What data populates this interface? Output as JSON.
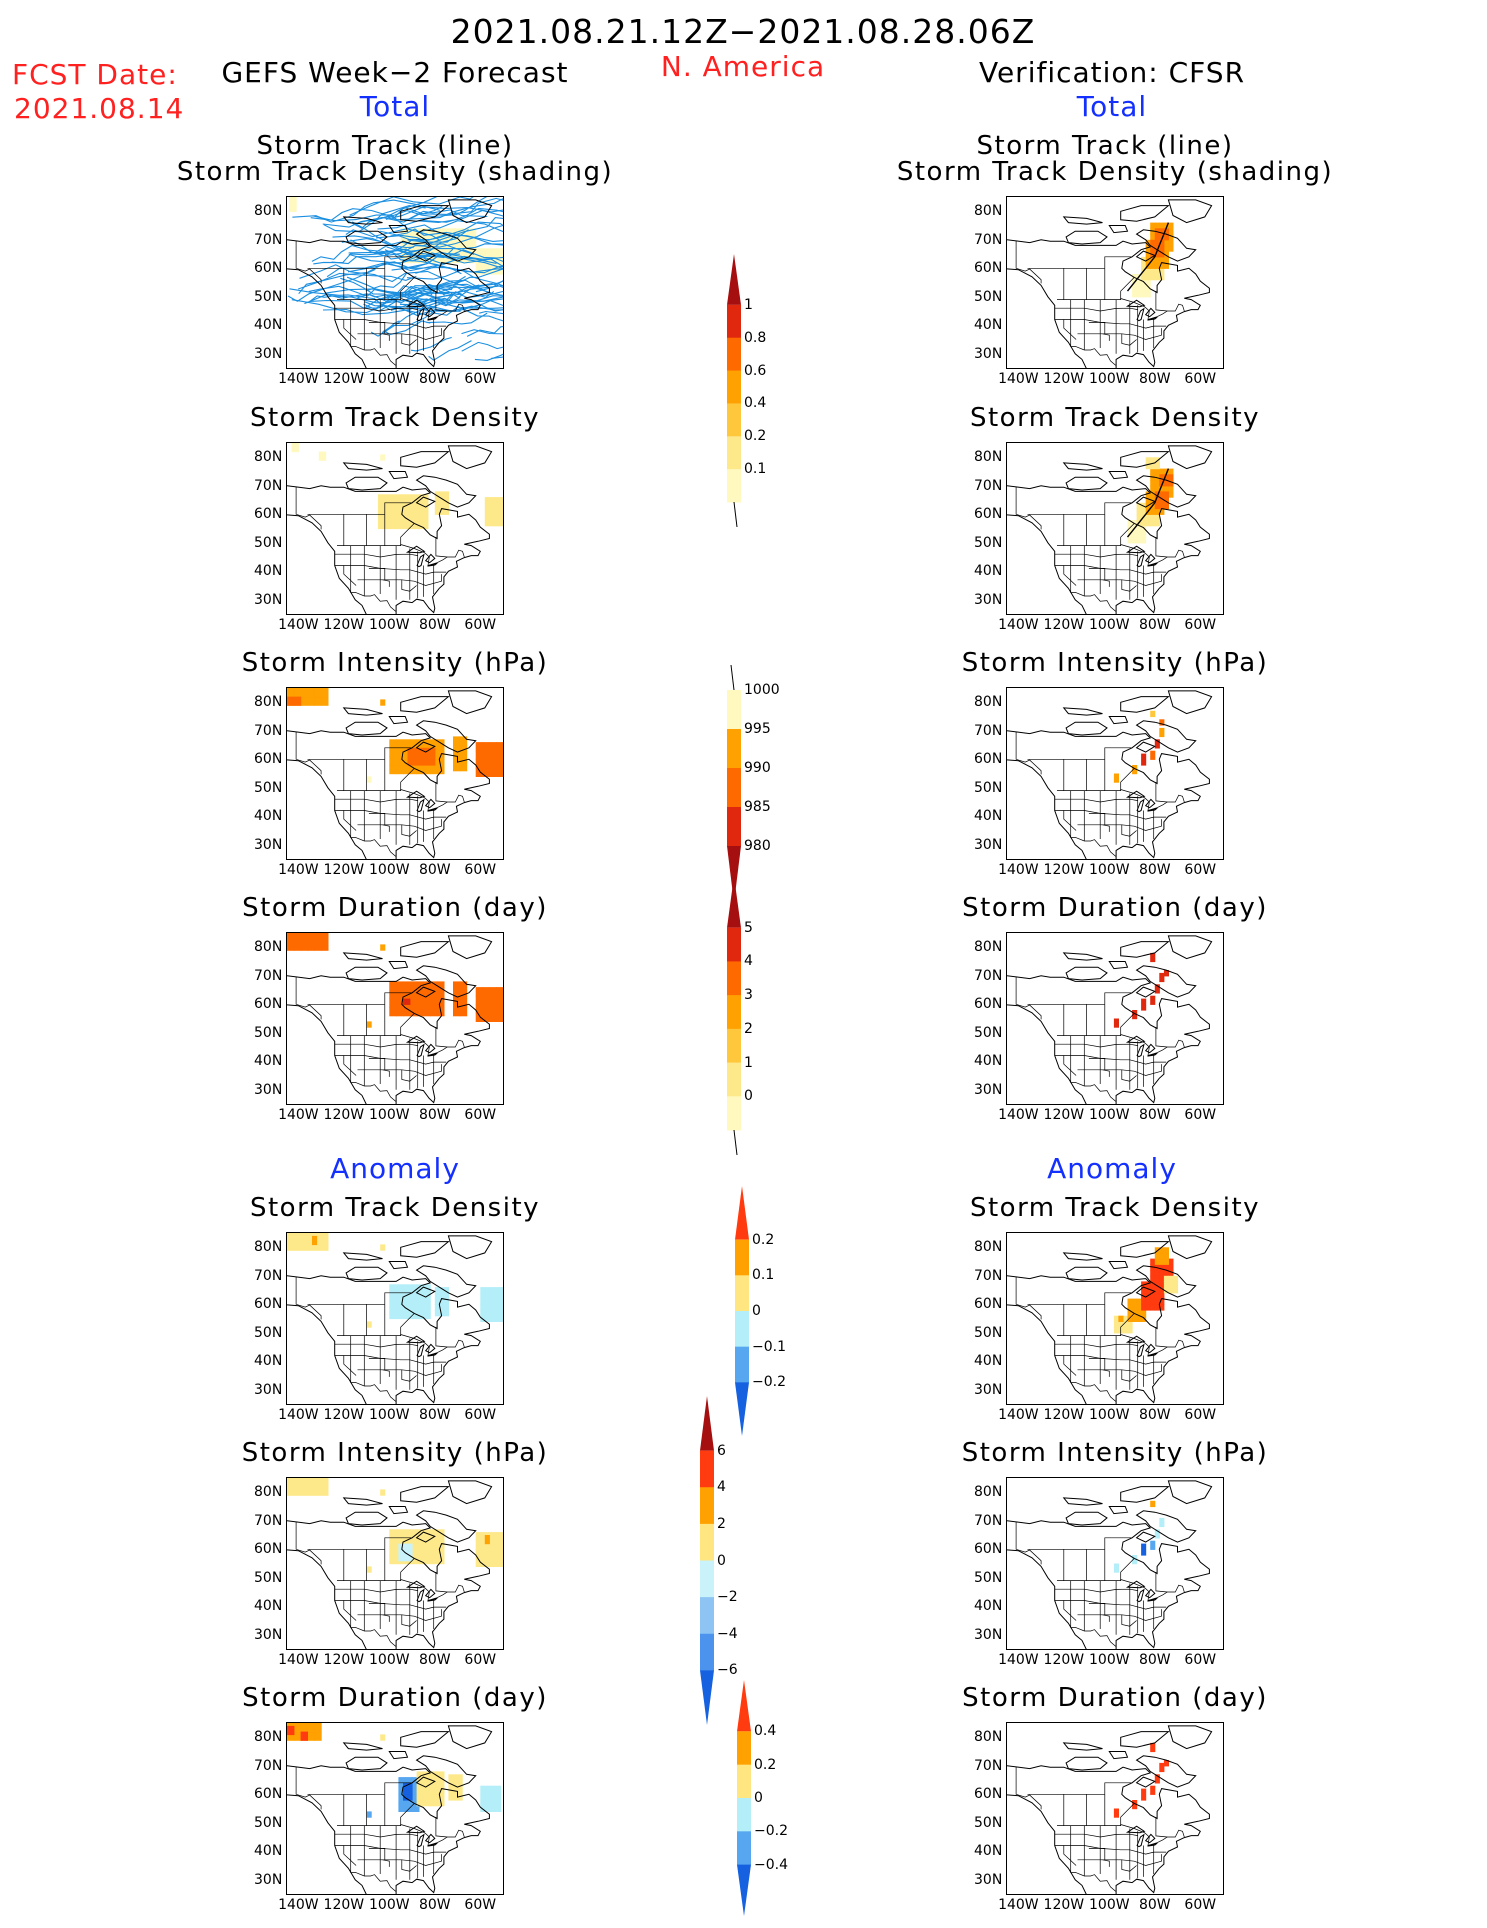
{
  "header": {
    "period": "2021.08.21.12Z−2021.08.28.06Z",
    "fcst_label": "FCST Date:",
    "fcst_date": "2021.08.14",
    "forecast_title": "GEFS Week−2 Forecast",
    "region": "N. America",
    "verification_title": "Verification: CFSR",
    "total_left": "Total",
    "total_right": "Total",
    "anomaly_left": "Anomaly",
    "anomaly_right": "Anomaly"
  },
  "axes": {
    "lat_ticks": [
      "80N",
      "70N",
      "60N",
      "50N",
      "40N",
      "30N"
    ],
    "lon_ticks": [
      "140W",
      "120W",
      "100W",
      "80W",
      "60W"
    ]
  },
  "panels": {
    "track_title_1": "Storm Track (line)",
    "track_title_2": "Storm Track Density (shading)",
    "density": "Storm Track Density",
    "intensity": "Storm Intensity (hPa)",
    "duration": "Storm Duration (day)"
  },
  "colorbars": {
    "density_total": {
      "labels": [
        "1",
        "0.8",
        "0.6",
        "0.4",
        "0.2",
        "0.1"
      ],
      "colors": [
        "#a50f0f",
        "#e0280e",
        "#ff6a00",
        "#ffa100",
        "#ffc73c",
        "#fde88a",
        "#fff9bf"
      ]
    },
    "intensity_total": {
      "labels": [
        "1000",
        "995",
        "990",
        "985",
        "980"
      ],
      "colors": [
        "#fff9bf",
        "#ffa100",
        "#ff6a00",
        "#e0280e",
        "#a50f0f"
      ]
    },
    "duration_total": {
      "labels": [
        "5",
        "4",
        "3",
        "2",
        "1",
        "0"
      ],
      "colors": [
        "#a50f0f",
        "#e0280e",
        "#ff6a00",
        "#ffa100",
        "#ffc73c",
        "#fde88a",
        "#fff9bf"
      ]
    },
    "density_anom": {
      "labels": [
        "0.2",
        "0.1",
        "0",
        "−0.1",
        "−0.2"
      ],
      "colors": [
        "#ff3b0f",
        "#ffa100",
        "#ffe680",
        "#b4eef8",
        "#56a6f0",
        "#1561e0"
      ]
    },
    "intensity_anom": {
      "labels": [
        "6",
        "4",
        "2",
        "0",
        "−2",
        "−4",
        "−6"
      ],
      "colors": [
        "#a50f0f",
        "#ff3b0f",
        "#ffa100",
        "#ffe680",
        "#c9f2fb",
        "#8dc4f3",
        "#4c93ee",
        "#1561e0"
      ]
    },
    "duration_anom": {
      "labels": [
        "0.4",
        "0.2",
        "0",
        "−0.2",
        "−0.4"
      ],
      "colors": [
        "#ff3b0f",
        "#ffa100",
        "#ffe680",
        "#b4eef8",
        "#56a6f0",
        "#1561e0"
      ]
    }
  }
}
